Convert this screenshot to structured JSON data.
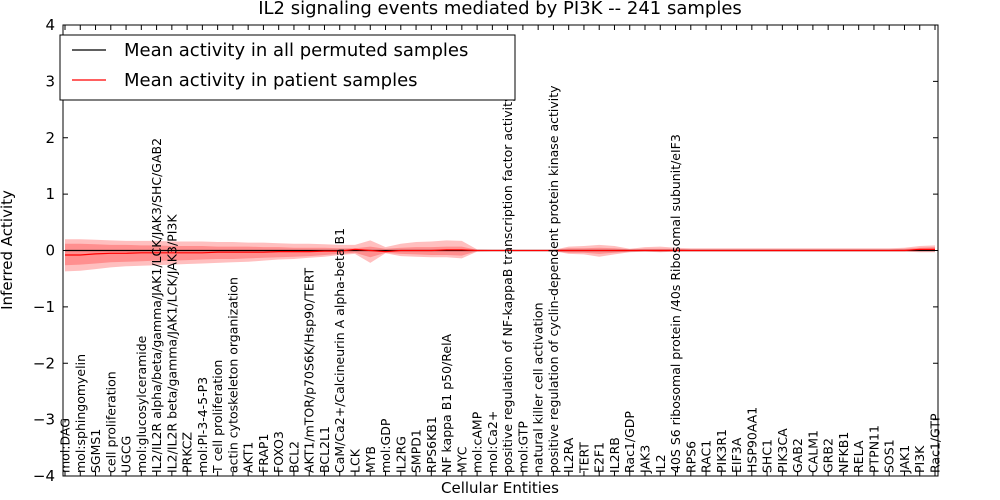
{
  "chart_data": {
    "type": "line",
    "title": "IL2 signaling events mediated by PI3K -- 241 samples",
    "xlabel": "Cellular Entities",
    "ylabel": "Inferred Activity",
    "ylim": [
      -4,
      4
    ],
    "yticks": [
      -4,
      -3,
      -2,
      -1,
      0,
      1,
      2,
      3,
      4
    ],
    "ytick_labels": [
      "−4",
      "−3",
      "−2",
      "−1",
      "0",
      "1",
      "2",
      "3",
      "4"
    ],
    "legend_position": "top-left",
    "categories": [
      "mol:DAG",
      "mol:sphingomyelin",
      "SGMS1",
      "cell proliferation",
      "UGCG",
      "mol:glucosylceramide",
      "IL2/IL2R alpha/beta/gamma/JAK1/LCK/JAK3/SHC/GAB2",
      "IL2/IL2R beta/gamma/JAK1/LCK/JAK3/PI3K",
      "PRKCZ",
      "mol:PI-3-4-5-P3",
      "T cell proliferation",
      "actin cytoskeleton organization",
      "AKT1",
      "FRAP1",
      "FOXO3",
      "BCL2",
      "AKT1/mTOR/p70S6K/Hsp90/TERT",
      "BCL2L1",
      "CaM/Ca2+/Calcineurin A alpha-beta B1",
      "LCK",
      "MYB",
      "mol:GDP",
      "IL2RG",
      "SMPD1",
      "RPS6KB1",
      "NF kappa B1 p50/RelA",
      "MYC",
      "mol:cAMP",
      "mol:Ca2+",
      "positive regulation of NF-kappaB transcription factor activity",
      "mol:GTP",
      "natural killer cell activation",
      "positive regulation of cyclin-dependent protein kinase activity",
      "IL2RA",
      "TERT",
      "E2F1",
      "IL2RB",
      "Rac1/GDP",
      "JAK3",
      "IL2",
      "40S S6 ribosomal protein /40s Ribosomal subunit/eIF3",
      "RPS6",
      "RAC1",
      "PIK3R1",
      "EIF3A",
      "HSP90AA1",
      "SHC1",
      "PIK3CA",
      "GAB2",
      "CALM1",
      "GRB2",
      "NFKB1",
      "RELA",
      "PTPN11",
      "SOS1",
      "JAK1",
      "PI3K",
      "Rac1/GTP"
    ],
    "series": [
      {
        "name": "Mean activity in all permuted samples",
        "color": "#000000",
        "values": [
          0.0,
          0.0,
          0.0,
          0.0,
          0.0,
          0.0,
          0.0,
          0.0,
          0.0,
          0.0,
          0.0,
          0.0,
          0.0,
          0.0,
          0.0,
          0.0,
          0.0,
          0.0,
          0.0,
          0.0,
          0.0,
          0.0,
          0.0,
          0.0,
          0.0,
          0.0,
          0.0,
          0.0,
          0.0,
          0.0,
          0.0,
          0.0,
          0.0,
          0.0,
          0.0,
          0.0,
          0.0,
          0.0,
          0.0,
          0.0,
          0.0,
          0.0,
          0.0,
          0.0,
          0.0,
          0.0,
          0.0,
          0.0,
          0.0,
          0.0,
          0.0,
          0.0,
          0.0,
          0.0,
          0.0,
          0.0,
          0.0,
          0.0
        ]
      },
      {
        "name": "Mean activity in patient samples",
        "color": "#ff0000",
        "values": [
          -0.08,
          -0.08,
          -0.06,
          -0.05,
          -0.05,
          -0.04,
          -0.04,
          -0.04,
          -0.04,
          -0.04,
          -0.03,
          -0.03,
          -0.03,
          -0.03,
          -0.02,
          -0.02,
          -0.02,
          -0.01,
          -0.01,
          0.02,
          0.0,
          -0.02,
          0.0,
          0.0,
          0.0,
          0.01,
          0.01,
          0.0,
          0.0,
          0.0,
          0.0,
          0.0,
          0.0,
          0.0,
          0.0,
          0.0,
          0.0,
          0.0,
          0.0,
          0.0,
          0.0,
          0.0,
          0.0,
          0.0,
          0.0,
          0.0,
          0.0,
          0.0,
          0.0,
          0.0,
          0.0,
          0.0,
          0.0,
          0.0,
          0.0,
          0.0,
          0.02,
          0.02
        ]
      }
    ],
    "band_upper": [
      0.2,
      0.2,
      0.19,
      0.18,
      0.17,
      0.17,
      0.17,
      0.16,
      0.16,
      0.16,
      0.15,
      0.15,
      0.14,
      0.14,
      0.13,
      0.12,
      0.12,
      0.11,
      0.1,
      0.1,
      0.18,
      0.06,
      0.12,
      0.15,
      0.16,
      0.18,
      0.17,
      0.02,
      0.01,
      0.01,
      0.01,
      0.01,
      0.01,
      0.07,
      0.08,
      0.1,
      0.08,
      0.03,
      0.06,
      0.07,
      0.05,
      0.04,
      0.04,
      0.04,
      0.04,
      0.04,
      0.04,
      0.04,
      0.04,
      0.04,
      0.04,
      0.04,
      0.04,
      0.04,
      0.04,
      0.05,
      0.08,
      0.09
    ],
    "band_lower": [
      -0.37,
      -0.36,
      -0.33,
      -0.3,
      -0.28,
      -0.27,
      -0.26,
      -0.25,
      -0.24,
      -0.23,
      -0.22,
      -0.21,
      -0.2,
      -0.18,
      -0.16,
      -0.15,
      -0.13,
      -0.11,
      -0.08,
      -0.06,
      -0.22,
      -0.05,
      -0.1,
      -0.11,
      -0.12,
      -0.12,
      -0.14,
      -0.02,
      -0.01,
      -0.01,
      -0.01,
      -0.01,
      -0.01,
      -0.06,
      -0.07,
      -0.11,
      -0.07,
      -0.03,
      -0.02,
      -0.03,
      -0.02,
      -0.02,
      -0.02,
      -0.02,
      -0.02,
      -0.02,
      -0.02,
      -0.02,
      -0.02,
      -0.02,
      -0.02,
      -0.02,
      -0.02,
      -0.02,
      -0.02,
      -0.02,
      -0.03,
      -0.03
    ],
    "band2_upper": [
      0.12,
      0.12,
      0.11,
      0.1,
      0.1,
      0.09,
      0.09,
      0.08,
      0.08,
      0.08,
      0.07,
      0.07,
      0.07,
      0.06,
      0.06,
      0.05,
      0.05,
      0.05,
      0.04,
      0.04,
      0.07,
      0.03,
      0.05,
      0.06,
      0.06,
      0.07,
      0.07,
      0.01,
      0.01,
      0.01,
      0.01,
      0.01,
      0.01,
      0.04,
      0.04,
      0.05,
      0.04,
      0.02,
      0.03,
      0.03,
      0.03,
      0.02,
      0.02,
      0.02,
      0.02,
      0.02,
      0.02,
      0.02,
      0.02,
      0.02,
      0.02,
      0.02,
      0.02,
      0.02,
      0.02,
      0.03,
      0.05,
      0.06
    ],
    "band2_lower": [
      -0.26,
      -0.25,
      -0.23,
      -0.21,
      -0.2,
      -0.19,
      -0.18,
      -0.18,
      -0.17,
      -0.16,
      -0.15,
      -0.15,
      -0.14,
      -0.13,
      -0.12,
      -0.11,
      -0.1,
      -0.08,
      -0.06,
      -0.04,
      -0.12,
      -0.04,
      -0.06,
      -0.07,
      -0.08,
      -0.08,
      -0.09,
      -0.01,
      -0.01,
      -0.01,
      -0.01,
      -0.01,
      -0.01,
      -0.04,
      -0.04,
      -0.06,
      -0.04,
      -0.02,
      -0.01,
      -0.02,
      -0.01,
      -0.01,
      -0.01,
      -0.01,
      -0.01,
      -0.01,
      -0.01,
      -0.01,
      -0.01,
      -0.01,
      -0.01,
      -0.01,
      -0.01,
      -0.01,
      -0.01,
      -0.01,
      -0.01,
      -0.01
    ],
    "band_color": "#ff0000"
  }
}
